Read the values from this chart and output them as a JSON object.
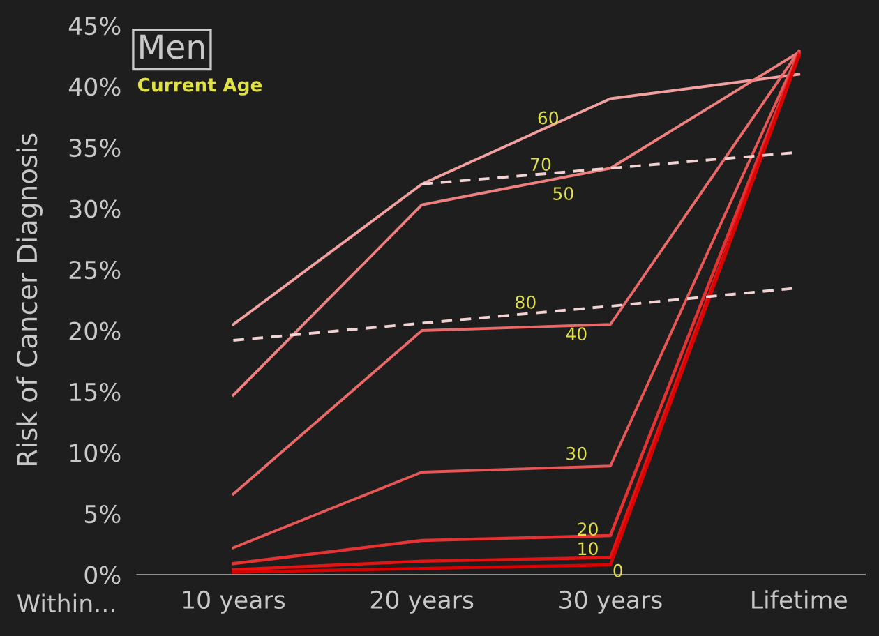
{
  "chart_data": {
    "type": "line",
    "title": "Men",
    "legend_title": "Current Age",
    "xlabel": "Within...",
    "ylabel": "Risk of Cancer Diagnosis",
    "categories": [
      "10 years",
      "20 years",
      "30 years",
      "Lifetime"
    ],
    "ylim": [
      0,
      45
    ],
    "yticks": [
      {
        "value": 0,
        "label": "0%"
      },
      {
        "value": 5,
        "label": "5%"
      },
      {
        "value": 10,
        "label": "10%"
      },
      {
        "value": 15,
        "label": "15%"
      },
      {
        "value": 20,
        "label": "20%"
      },
      {
        "value": 25,
        "label": "25%"
      },
      {
        "value": 30,
        "label": "30%"
      },
      {
        "value": 35,
        "label": "35%"
      },
      {
        "value": 40,
        "label": "40%"
      },
      {
        "value": 45,
        "label": "45%"
      }
    ],
    "grid": false,
    "legend": false,
    "marker": "none",
    "series": [
      {
        "name": "0",
        "color": "#dc0000",
        "values": [
          0.2,
          0.5,
          0.8,
          42.5
        ]
      },
      {
        "name": "10",
        "color": "#e41414",
        "values": [
          0.4,
          1.1,
          1.4,
          42.6
        ]
      },
      {
        "name": "20",
        "color": "#e63232",
        "values": [
          0.9,
          2.8,
          3.2,
          42.7
        ]
      },
      {
        "name": "30",
        "color": "#e85656",
        "values": [
          2.2,
          8.4,
          8.9,
          42.8
        ]
      },
      {
        "name": "40",
        "color": "#ea6a6a",
        "values": [
          6.6,
          20.0,
          20.5,
          42.9
        ]
      },
      {
        "name": "50",
        "color": "#ee8080",
        "values": [
          14.7,
          30.3,
          33.3,
          42.8
        ]
      },
      {
        "name": "60",
        "color": "#f3a0a0",
        "values": [
          20.5,
          32.0,
          39.0,
          41.0
        ]
      },
      {
        "name": "70",
        "color": "#f2d2d2",
        "values": [
          null,
          32.0,
          33.3,
          34.6
        ],
        "line_style": "dashed"
      },
      {
        "name": "80",
        "color": "#f2d2d2",
        "values": [
          19.2,
          20.6,
          22.0,
          23.5
        ],
        "line_style": "dashed"
      }
    ]
  }
}
